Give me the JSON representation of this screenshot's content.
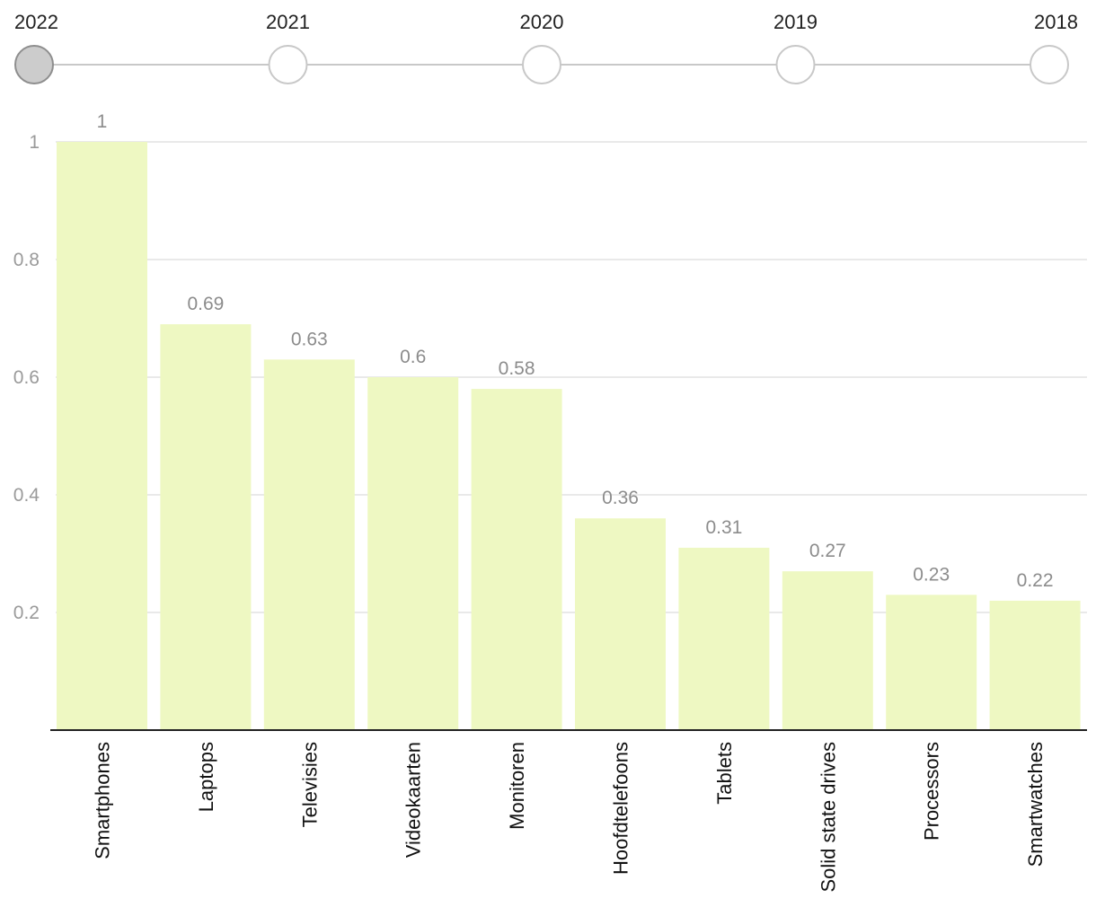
{
  "timeline": {
    "years": [
      "2022",
      "2021",
      "2020",
      "2019",
      "2018"
    ],
    "selected_index": 0
  },
  "chart_data": {
    "type": "bar",
    "title": "",
    "xlabel": "",
    "ylabel": "",
    "categories": [
      "Smartphones",
      "Laptops",
      "Televisies",
      "Videokaarten",
      "Monitoren",
      "Hoofdtelefoons",
      "Tablets",
      "Solid state drives",
      "Processors",
      "Smartwatches"
    ],
    "values": [
      1,
      0.69,
      0.63,
      0.6,
      0.58,
      0.36,
      0.31,
      0.27,
      0.23,
      0.22
    ],
    "value_labels": [
      "1",
      "0.69",
      "0.63",
      "0.6",
      "0.58",
      "0.36",
      "0.31",
      "0.27",
      "0.23",
      "0.22"
    ],
    "ylim": [
      0,
      1
    ],
    "yticks": [
      0.2,
      0.4,
      0.6,
      0.8,
      1
    ],
    "ytick_labels": [
      "0.2",
      "0.4",
      "0.6",
      "0.8",
      "1"
    ],
    "grid": true,
    "legend": "none"
  },
  "colors": {
    "bar": "#eef8c2",
    "grid": "#e2e2e2",
    "axis": "#222222",
    "timeline_line": "#c8c8c8",
    "dot_border": "#c8c8c8",
    "dot_selected_fill": "#cccccc",
    "dot_selected_border": "#8e8e8e"
  }
}
